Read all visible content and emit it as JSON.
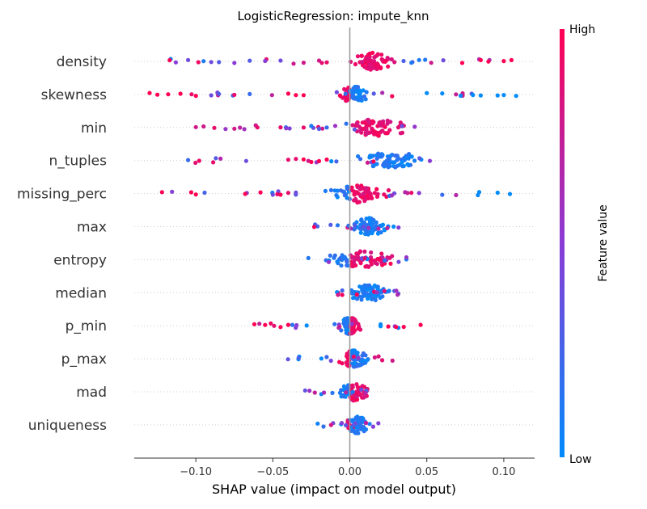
{
  "chart_data": {
    "type": "scatter",
    "subtype": "shap-beeswarm",
    "title": "LogisticRegression: impute_knn",
    "xlabel": "SHAP value (impact on model output)",
    "xlim": [
      -0.14,
      0.12
    ],
    "xticks": [
      -0.1,
      -0.05,
      0.0,
      0.05,
      0.1
    ],
    "xtick_labels": [
      "−0.10",
      "−0.05",
      "0.00",
      "0.05",
      "0.10"
    ],
    "colorbar": {
      "label": "Feature value",
      "high_label": "High",
      "low_label": "Low",
      "low_color": "#008bfb",
      "high_color": "#ff0052"
    },
    "zero_line_color": "#999999",
    "features": [
      {
        "name": "density",
        "range": [
          -0.12,
          0.105
        ],
        "dense_range": [
          0.0,
          0.03
        ],
        "outliers": [
          [
            -0.113,
            0.5
          ],
          [
            -0.105,
            0.4
          ],
          [
            -0.095,
            0.1
          ],
          [
            -0.09,
            0.4
          ],
          [
            -0.085,
            0.3
          ],
          [
            -0.075,
            0.5
          ],
          [
            -0.065,
            0.3
          ],
          [
            -0.055,
            0.5
          ],
          [
            -0.045,
            0.4
          ],
          [
            -0.03,
            0.8
          ],
          [
            -0.02,
            0.8
          ],
          [
            -0.015,
            0.9
          ],
          [
            0.04,
            0.1
          ],
          [
            0.045,
            0.1
          ],
          [
            0.073,
            1.0
          ],
          [
            0.085,
            1.0
          ],
          [
            0.09,
            1.0
          ],
          [
            0.1,
            1.0
          ],
          [
            0.105,
            1.0
          ]
        ]
      },
      {
        "name": "skewness",
        "range": [
          -0.13,
          0.108
        ],
        "dense_range": [
          -0.01,
          0.015
        ],
        "outliers": [
          [
            -0.13,
            1.0
          ],
          [
            -0.125,
            1.0
          ],
          [
            -0.118,
            1.0
          ],
          [
            -0.11,
            1.0
          ],
          [
            -0.1,
            1.0
          ],
          [
            -0.09,
            0.4
          ],
          [
            -0.085,
            0.3
          ],
          [
            -0.075,
            0.9
          ],
          [
            -0.065,
            0.2
          ],
          [
            -0.04,
            1.0
          ],
          [
            -0.035,
            1.0
          ],
          [
            -0.03,
            1.0
          ],
          [
            0.05,
            0.0
          ],
          [
            0.06,
            0.0
          ],
          [
            0.072,
            0.0
          ],
          [
            0.08,
            0.0
          ],
          [
            0.085,
            0.0
          ],
          [
            0.096,
            0.0
          ],
          [
            0.1,
            0.0
          ],
          [
            0.108,
            0.0
          ]
        ]
      },
      {
        "name": "min",
        "range": [
          -0.1,
          0.052
        ],
        "dense_range": [
          -0.01,
          0.045
        ],
        "outliers": [
          [
            -0.1,
            0.8
          ],
          [
            -0.095,
            0.8
          ],
          [
            -0.088,
            0.9
          ],
          [
            -0.075,
            0.8
          ],
          [
            -0.06,
            0.9
          ],
          [
            -0.045,
            0.9
          ],
          [
            -0.03,
            0.9
          ],
          [
            -0.025,
            0.1
          ],
          [
            -0.02,
            0.3
          ],
          [
            -0.015,
            0.2
          ]
        ]
      },
      {
        "name": "n_tuples",
        "range": [
          -0.105,
          0.057
        ],
        "dense_range": [
          0.0,
          0.055
        ],
        "outliers": [
          [
            -0.105,
            0.2
          ],
          [
            -0.04,
            0.9
          ],
          [
            -0.035,
            0.9
          ],
          [
            -0.03,
            1.0
          ],
          [
            -0.025,
            1.0
          ],
          [
            -0.02,
            1.0
          ],
          [
            -0.015,
            1.0
          ],
          [
            -0.012,
            0.0
          ]
        ]
      },
      {
        "name": "missing_perc",
        "range": [
          -0.122,
          0.104
        ],
        "dense_range": [
          -0.02,
          0.03
        ],
        "outliers": [
          [
            -0.122,
            1.0
          ],
          [
            -0.103,
            1.0
          ],
          [
            -0.1,
            1.0
          ],
          [
            -0.068,
            1.0
          ],
          [
            -0.058,
            1.0
          ],
          [
            -0.05,
            0.4
          ],
          [
            -0.045,
            1.0
          ],
          [
            -0.04,
            0.9
          ],
          [
            -0.035,
            0.4
          ],
          [
            0.04,
            0.9
          ],
          [
            0.045,
            0.5
          ],
          [
            0.06,
            0.2
          ],
          [
            0.084,
            0.0
          ],
          [
            0.096,
            0.0
          ],
          [
            0.104,
            0.0
          ]
        ]
      },
      {
        "name": "max",
        "range": [
          -0.026,
          0.036
        ],
        "dense_range": [
          -0.005,
          0.03
        ],
        "outliers": []
      },
      {
        "name": "entropy",
        "range": [
          -0.027,
          0.038
        ],
        "dense_range": [
          -0.02,
          0.035
        ],
        "outliers": []
      },
      {
        "name": "median",
        "range": [
          -0.01,
          0.035
        ],
        "dense_range": [
          -0.005,
          0.03
        ],
        "outliers": []
      },
      {
        "name": "p_min",
        "range": [
          -0.062,
          0.046
        ],
        "dense_range": [
          -0.01,
          0.01
        ],
        "outliers": [
          [
            -0.062,
            1.0
          ],
          [
            -0.055,
            1.0
          ],
          [
            -0.045,
            1.0
          ],
          [
            -0.04,
            1.0
          ],
          [
            -0.028,
            0.0
          ],
          [
            0.02,
            0.0
          ],
          [
            0.025,
            1.0
          ],
          [
            0.03,
            1.0
          ],
          [
            0.035,
            1.0
          ],
          [
            0.046,
            1.0
          ]
        ]
      },
      {
        "name": "p_max",
        "range": [
          -0.043,
          0.029
        ],
        "dense_range": [
          -0.01,
          0.015
        ],
        "outliers": []
      },
      {
        "name": "mad",
        "range": [
          -0.03,
          0.021
        ],
        "dense_range": [
          -0.01,
          0.015
        ],
        "outliers": []
      },
      {
        "name": "uniqueness",
        "range": [
          -0.022,
          0.02
        ],
        "dense_range": [
          -0.005,
          0.015
        ],
        "outliers": []
      }
    ]
  }
}
